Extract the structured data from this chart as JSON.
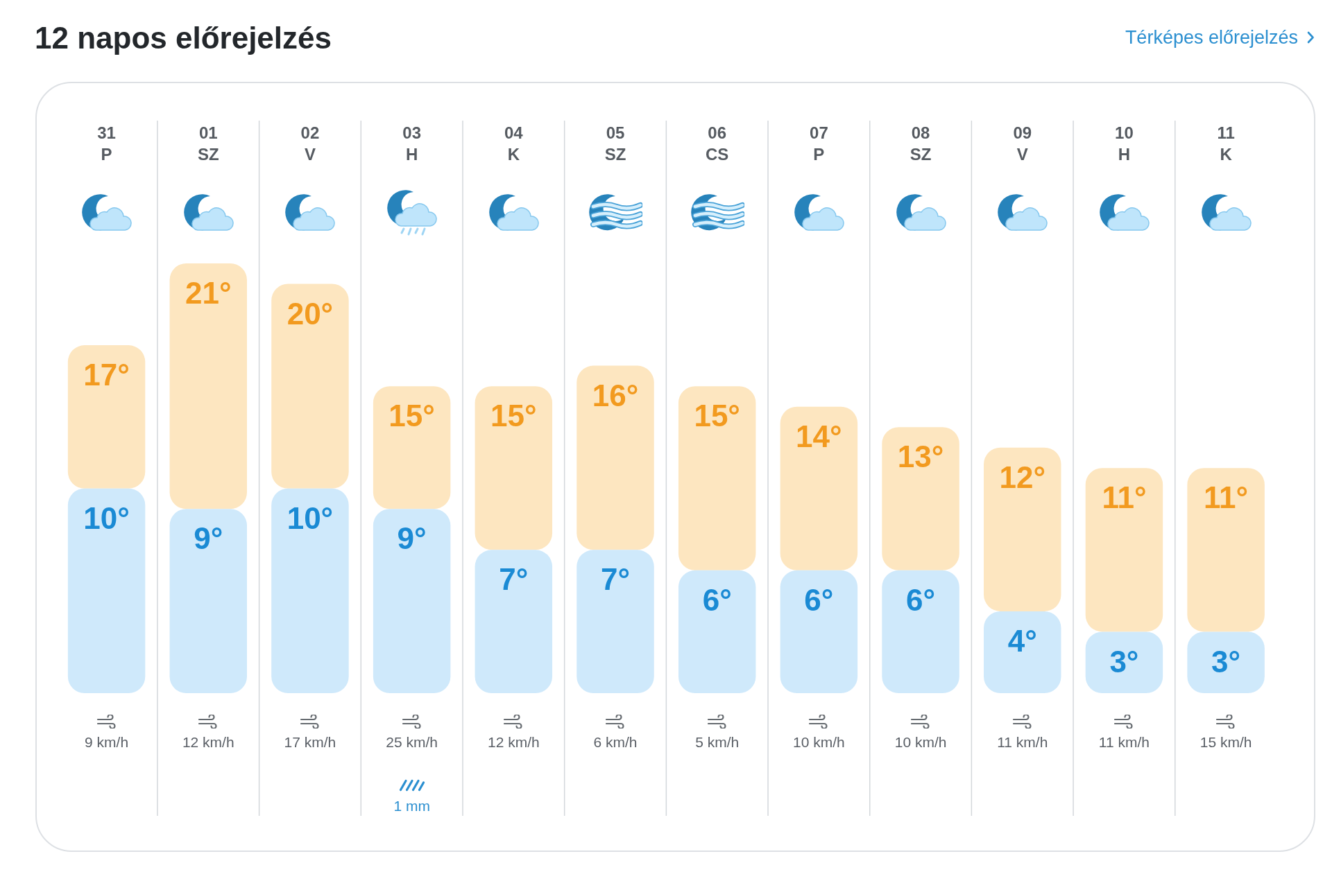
{
  "chart_data": {
    "type": "bar",
    "title": "12 napos előrejelzés",
    "categories": [
      "31\nP",
      "01\nSZ",
      "02\nV",
      "03\nH",
      "04\nK",
      "05\nSZ",
      "06\nCS",
      "07\nP",
      "08\nSZ",
      "09\nV",
      "10\nH",
      "11\nK"
    ],
    "series": [
      {
        "color": "#cfe9fb",
        "values": [
          10,
          9,
          10,
          9,
          7,
          7,
          6,
          6,
          6,
          4,
          3,
          3
        ],
        "value_labels": [
          "10°",
          "9°",
          "10°",
          "9°",
          "7°",
          "7°",
          "6°",
          "6°",
          "6°",
          "4°",
          "3°",
          "3°"
        ]
      },
      {
        "color": "#fde6c0",
        "values": [
          7,
          12,
          10,
          6,
          8,
          9,
          9,
          8,
          7,
          8,
          8,
          8
        ]
      }
    ],
    "stacked": true,
    "totals": [
      "17°",
      "21°",
      "20°",
      "15°",
      "15°",
      "16°",
      "15°",
      "14°",
      "13°",
      "12°",
      "11°",
      "11°"
    ],
    "tick_labels": "x",
    "grid": "x",
    "legend": false,
    "annotations": [
      "Térképes előrejelzés",
      "9 km/h",
      "12 km/h",
      "17 km/h",
      "25 km/h",
      "12 km/h",
      "6 km/h",
      "5 km/h",
      "10 km/h",
      "10 km/h",
      "11 km/h",
      "11 km/h",
      "15 km/h",
      "1 mm"
    ]
  }
}
